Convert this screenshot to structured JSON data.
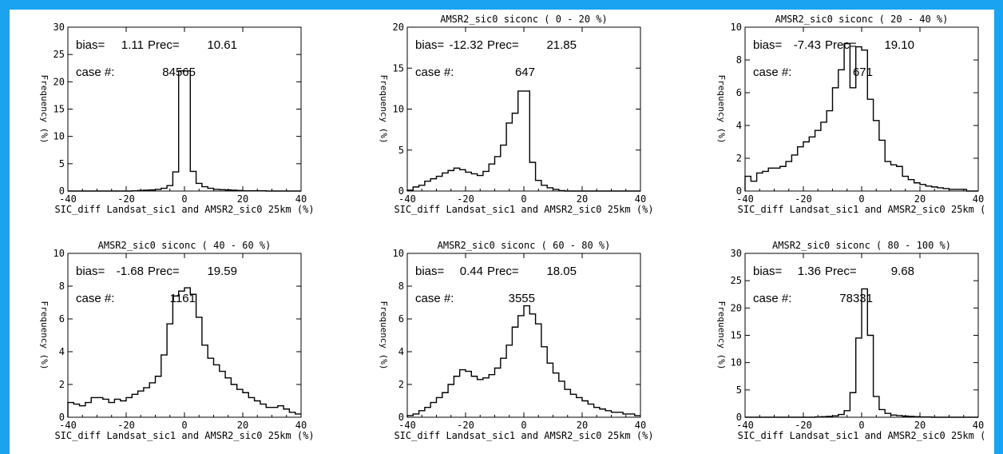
{
  "colors": {
    "frame": "#1aa3f0",
    "background": "#ffffff",
    "line": "#000000"
  },
  "chart_data": [
    {
      "type": "line",
      "title": "",
      "xlabel": "SIC_diff Landsat_sic1 and AMSR2_sic0 25km (%)",
      "ylabel": "Frequency (%)",
      "xlim": [
        -40,
        40
      ],
      "ylim": [
        0,
        30
      ],
      "xticks": [
        "-40",
        "-20",
        "0",
        "20",
        "40"
      ],
      "yticks": [
        "0",
        "5",
        "10",
        "15",
        "20",
        "25",
        "30"
      ],
      "bias_label": "bias=",
      "bias": "1.11",
      "prec_label": "Prec=",
      "prec": "10.61",
      "case_label": "case #:",
      "case_count": "84565",
      "series": [
        {
          "x": [
            -40,
            -38,
            -36,
            -34,
            -32,
            -30,
            -28,
            -26,
            -24,
            -22,
            -20,
            -18,
            -16,
            -14,
            -12,
            -10,
            -8,
            -6,
            -4,
            -2,
            0,
            2,
            4,
            6,
            8,
            10,
            12,
            14,
            16,
            18,
            20,
            22,
            24,
            26,
            28,
            30,
            32,
            34,
            36,
            38
          ],
          "values": [
            0,
            0,
            0,
            0,
            0,
            0,
            0,
            0,
            0,
            0,
            0,
            0.05,
            0.1,
            0.15,
            0.2,
            0.3,
            0.5,
            1,
            3.5,
            22,
            22,
            3.6,
            1.4,
            0.8,
            0.5,
            0.3,
            0.25,
            0.2,
            0.15,
            0.1,
            0.05,
            0.05,
            0.05,
            0.05,
            0,
            0,
            0,
            0,
            0,
            0
          ]
        }
      ]
    },
    {
      "type": "line",
      "title": "AMSR2_sic0 siconc (  0 -  20 %)",
      "xlabel": "SIC_diff Landsat_sic1 and AMSR2_sic0 25km (%)",
      "ylabel": "Frequency (%)",
      "xlim": [
        -40,
        40
      ],
      "ylim": [
        0,
        20
      ],
      "xticks": [
        "-40",
        "-20",
        "0",
        "20",
        "40"
      ],
      "yticks": [
        "0",
        "5",
        "10",
        "15",
        "20"
      ],
      "bias_label": "bias=",
      "bias": "-12.32",
      "prec_label": "Prec=",
      "prec": "21.85",
      "case_label": "case #:",
      "case_count": "647",
      "series": [
        {
          "x": [
            -40,
            -38,
            -36,
            -34,
            -32,
            -30,
            -28,
            -26,
            -24,
            -22,
            -20,
            -18,
            -16,
            -14,
            -12,
            -10,
            -8,
            -6,
            -4,
            -2,
            0,
            2,
            4,
            6,
            8,
            10,
            12,
            14,
            16,
            18,
            20,
            22,
            24,
            26,
            28,
            30,
            32,
            34,
            36,
            38
          ],
          "values": [
            0.1,
            0.5,
            0.7,
            1.2,
            1.5,
            1.8,
            2.2,
            2.5,
            2.8,
            2.6,
            2.3,
            2.1,
            1.9,
            2.4,
            3.3,
            4.2,
            5.6,
            8.3,
            9.5,
            12.2,
            12.2,
            3.5,
            1.3,
            0.7,
            0.4,
            0.2,
            0.05,
            0,
            0,
            0,
            0,
            0,
            0,
            0,
            0,
            0,
            0,
            0,
            0,
            0
          ]
        }
      ]
    },
    {
      "type": "line",
      "title": "AMSR2_sic0 siconc ( 20 -  40 %)",
      "xlabel": "SIC_diff Landsat_sic1 and AMSR2_sic0 25km (",
      "ylabel": "Frequency (%)",
      "xlim": [
        -40,
        40
      ],
      "ylim": [
        0,
        10
      ],
      "xticks": [
        "-40",
        "-20",
        "0",
        "20",
        "40"
      ],
      "yticks": [
        "0",
        "2",
        "4",
        "6",
        "8",
        "10"
      ],
      "bias_label": "bias=",
      "bias": "-7.43",
      "prec_label": "Prec=",
      "prec": "19.10",
      "case_label": "case #:",
      "case_count": "671",
      "series": [
        {
          "x": [
            -40,
            -38,
            -36,
            -34,
            -32,
            -30,
            -28,
            -26,
            -24,
            -22,
            -20,
            -18,
            -16,
            -14,
            -12,
            -10,
            -8,
            -6,
            -4,
            -2,
            0,
            2,
            4,
            6,
            8,
            10,
            12,
            14,
            16,
            18,
            20,
            22,
            24,
            26,
            28,
            30,
            32,
            34,
            36,
            38
          ],
          "values": [
            0.9,
            0.6,
            1.1,
            1.2,
            1.4,
            1.4,
            1.5,
            1.8,
            2.2,
            2.7,
            3.0,
            3.3,
            3.7,
            4.2,
            4.9,
            6.3,
            7.4,
            9.0,
            6.3,
            8.8,
            8.6,
            5.6,
            4.3,
            3.1,
            1.8,
            1.6,
            1.5,
            0.9,
            0.7,
            0.5,
            0.4,
            0.3,
            0.25,
            0.2,
            0.15,
            0.1,
            0.1,
            0.1,
            0,
            0
          ]
        }
      ]
    },
    {
      "type": "line",
      "title": "AMSR2_sic0 siconc ( 40 -  60 %)",
      "xlabel": "SIC_diff Landsat_sic1 and AMSR2_sic0 25km (%)",
      "ylabel": "Frequency (%)",
      "xlim": [
        -40,
        40
      ],
      "ylim": [
        0,
        10
      ],
      "xticks": [
        "-40",
        "-20",
        "0",
        "20",
        "40"
      ],
      "yticks": [
        "0",
        "2",
        "4",
        "6",
        "8",
        "10"
      ],
      "bias_label": "bias=",
      "bias": "-1.68",
      "prec_label": "Prec=",
      "prec": "19.59",
      "case_label": "case #:",
      "case_count": "1161",
      "series": [
        {
          "x": [
            -40,
            -38,
            -36,
            -34,
            -32,
            -30,
            -28,
            -26,
            -24,
            -22,
            -20,
            -18,
            -16,
            -14,
            -12,
            -10,
            -8,
            -6,
            -4,
            -2,
            0,
            2,
            4,
            6,
            8,
            10,
            12,
            14,
            16,
            18,
            20,
            22,
            24,
            26,
            28,
            30,
            32,
            34,
            36,
            38
          ],
          "values": [
            0.9,
            0.8,
            0.7,
            0.9,
            1.2,
            1.2,
            1.1,
            0.9,
            1.1,
            1.0,
            1.2,
            1.4,
            1.6,
            1.8,
            2.1,
            2.5,
            3.8,
            5.7,
            7.4,
            7.7,
            7.9,
            7.5,
            6.1,
            4.4,
            3.6,
            3.2,
            2.8,
            2.4,
            2.0,
            1.7,
            1.5,
            1.2,
            1.0,
            0.8,
            0.6,
            0.6,
            0.7,
            0.5,
            0.3,
            0.2
          ]
        }
      ]
    },
    {
      "type": "line",
      "title": "AMSR2_sic0 siconc ( 60 -  80 %)",
      "xlabel": "SIC_diff Landsat_sic1 and AMSR2_sic0 25km (%)",
      "ylabel": "Frequency (%)",
      "xlim": [
        -40,
        40
      ],
      "ylim": [
        0,
        10
      ],
      "xticks": [
        "-40",
        "-20",
        "0",
        "20",
        "40"
      ],
      "yticks": [
        "0",
        "2",
        "4",
        "6",
        "8",
        "10"
      ],
      "bias_label": "bias=",
      "bias": "0.44",
      "prec_label": "Prec=",
      "prec": "18.05",
      "case_label": "case #:",
      "case_count": "3555",
      "series": [
        {
          "x": [
            -40,
            -38,
            -36,
            -34,
            -32,
            -30,
            -28,
            -26,
            -24,
            -22,
            -20,
            -18,
            -16,
            -14,
            -12,
            -10,
            -8,
            -6,
            -4,
            -2,
            0,
            2,
            4,
            6,
            8,
            10,
            12,
            14,
            16,
            18,
            20,
            22,
            24,
            26,
            28,
            30,
            32,
            34,
            36,
            38
          ],
          "values": [
            0.1,
            0.2,
            0.4,
            0.6,
            0.9,
            1.2,
            1.5,
            2.0,
            2.5,
            2.9,
            2.8,
            2.5,
            2.3,
            2.4,
            2.6,
            3.0,
            3.6,
            4.4,
            5.5,
            6.2,
            6.8,
            6.3,
            5.7,
            4.3,
            3.3,
            2.7,
            2.2,
            1.7,
            1.4,
            1.2,
            1.0,
            0.8,
            0.6,
            0.5,
            0.4,
            0.3,
            0.3,
            0.2,
            0.2,
            0.1
          ]
        }
      ]
    },
    {
      "type": "line",
      "title": "AMSR2_sic0 siconc ( 80 - 100 %)",
      "xlabel": "SIC_diff Landsat_sic1 and AMSR2_sic0 25km (",
      "ylabel": "Frequency (%)",
      "xlim": [
        -40,
        40
      ],
      "ylim": [
        0,
        30
      ],
      "xticks": [
        "-40",
        "-20",
        "0",
        "20",
        "40"
      ],
      "yticks": [
        "0",
        "5",
        "10",
        "15",
        "20",
        "25",
        "30"
      ],
      "bias_label": "bias=",
      "bias": "1.36",
      "prec_label": "Prec=",
      "prec": "9.68",
      "case_label": "case #:",
      "case_count": "78331",
      "series": [
        {
          "x": [
            -40,
            -38,
            -36,
            -34,
            -32,
            -30,
            -28,
            -26,
            -24,
            -22,
            -20,
            -18,
            -16,
            -14,
            -12,
            -10,
            -8,
            -6,
            -4,
            -2,
            0,
            2,
            4,
            6,
            8,
            10,
            12,
            14,
            16,
            18,
            20,
            22,
            24,
            26,
            28,
            30,
            32,
            34,
            36,
            38
          ],
          "values": [
            0,
            0,
            0,
            0,
            0,
            0,
            0,
            0,
            0,
            0,
            0,
            0,
            0.05,
            0.1,
            0.15,
            0.25,
            0.5,
            1.2,
            4.5,
            14.5,
            23.5,
            15,
            3.8,
            1.4,
            0.7,
            0.4,
            0.3,
            0.2,
            0.15,
            0.1,
            0.05,
            0.05,
            0,
            0,
            0,
            0,
            0,
            0,
            0,
            0
          ]
        }
      ]
    }
  ]
}
